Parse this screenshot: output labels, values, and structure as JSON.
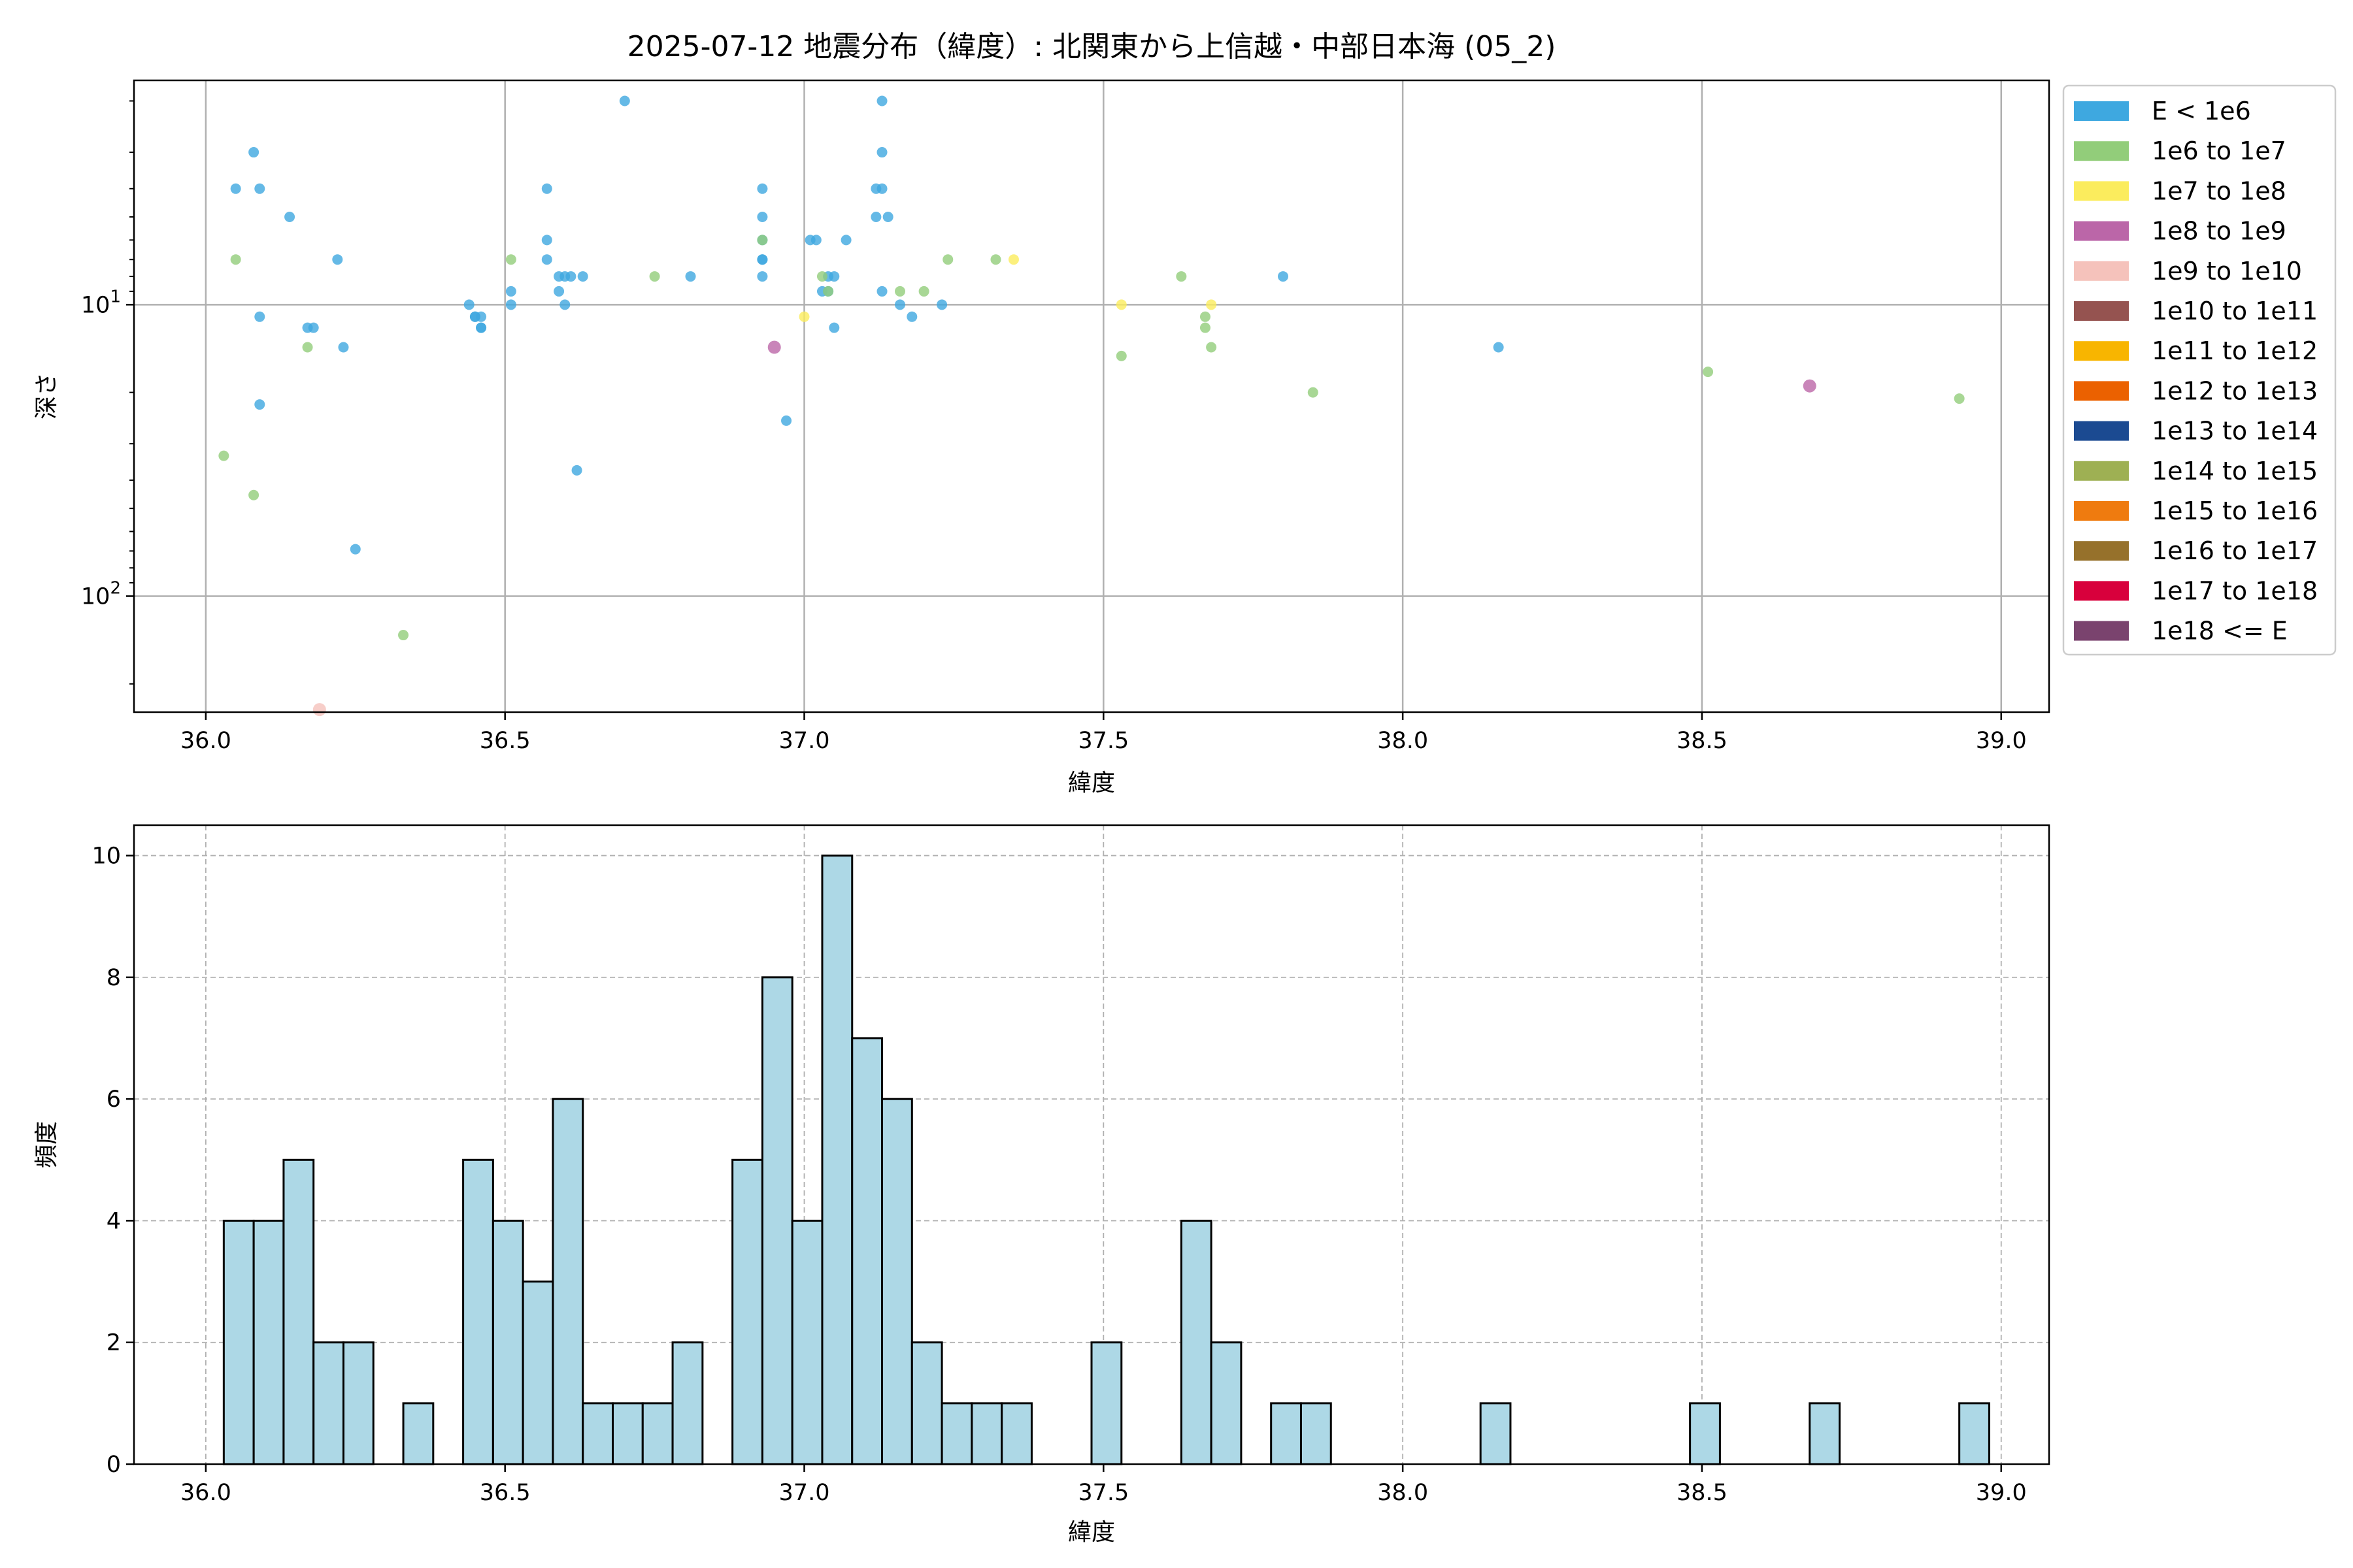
{
  "chart_data": [
    {
      "type": "scatter",
      "title": "2025-07-12 地震分布（緯度）: 北関東から上信越・中部日本海 (05_2)",
      "xlabel": "緯度",
      "ylabel": "深さ",
      "xlim": [
        35.88,
        39.08
      ],
      "ylim": [
        250,
        1.7
      ],
      "yscale": "log",
      "y_inverted": true,
      "grid": true,
      "x_ticks": [
        "36.0",
        "36.5",
        "37.0",
        "37.5",
        "38.0",
        "38.5",
        "39.0"
      ],
      "y_ticks": [
        10,
        100
      ],
      "legend_position": "outside-right",
      "legend": [
        {
          "label": "E < 1e6",
          "color": "#3ea8e0"
        },
        {
          "label": "1e6 to 1e7",
          "color": "#92cd7a"
        },
        {
          "label": "1e7 to 1e8",
          "color": "#fbec5d"
        },
        {
          "label": "1e8 to 1e9",
          "color": "#bb66a8"
        },
        {
          "label": "1e9 to 1e10",
          "color": "#f5c2bb"
        },
        {
          "label": "1e10 to 1e11",
          "color": "#955350"
        },
        {
          "label": "1e11 to 1e12",
          "color": "#f8b500"
        },
        {
          "label": "1e12 to 1e13",
          "color": "#eb6100"
        },
        {
          "label": "1e13 to 1e14",
          "color": "#1b4a91"
        },
        {
          "label": "1e14 to 1e15",
          "color": "#9eb053"
        },
        {
          "label": "1e15 to 1e16",
          "color": "#ef7b0f"
        },
        {
          "label": "1e16 to 1e17",
          "color": "#96712b"
        },
        {
          "label": "1e17 to 1e18",
          "color": "#d8003c"
        },
        {
          "label": "1e18 <= E",
          "color": "#7a436e"
        }
      ],
      "series": [
        {
          "color": "#3ea8e0",
          "points": [
            [
              36.05,
              4.0
            ],
            [
              36.08,
              3.0
            ],
            [
              36.09,
              4.0
            ],
            [
              36.09,
              11.0
            ],
            [
              36.09,
              22.0
            ],
            [
              36.14,
              5.0
            ],
            [
              36.17,
              12.0
            ],
            [
              36.18,
              12.0
            ],
            [
              36.22,
              7.0
            ],
            [
              36.23,
              14.0
            ],
            [
              36.25,
              69.0
            ],
            [
              36.44,
              10.0
            ],
            [
              36.45,
              11.0
            ],
            [
              36.45,
              11.0
            ],
            [
              36.46,
              11.0
            ],
            [
              36.46,
              12.0
            ],
            [
              36.46,
              12.0
            ],
            [
              36.51,
              9.0
            ],
            [
              36.51,
              10.0
            ],
            [
              36.57,
              4.0
            ],
            [
              36.57,
              6.0
            ],
            [
              36.57,
              7.0
            ],
            [
              36.59,
              8.0
            ],
            [
              36.59,
              9.0
            ],
            [
              36.6,
              8.0
            ],
            [
              36.6,
              10.0
            ],
            [
              36.61,
              8.0
            ],
            [
              36.62,
              37.0
            ],
            [
              36.63,
              8.0
            ],
            [
              36.7,
              2.0
            ],
            [
              36.81,
              8.0
            ],
            [
              36.93,
              4.0
            ],
            [
              36.93,
              5.0
            ],
            [
              36.93,
              6.0
            ],
            [
              36.93,
              7.0
            ],
            [
              36.93,
              7.0
            ],
            [
              36.93,
              8.0
            ],
            [
              36.97,
              25.0
            ],
            [
              37.01,
              6.0
            ],
            [
              37.02,
              6.0
            ],
            [
              37.03,
              9.0
            ],
            [
              37.04,
              8.0
            ],
            [
              37.04,
              9.0
            ],
            [
              37.05,
              12.0
            ],
            [
              37.05,
              8.0
            ],
            [
              37.07,
              6.0
            ],
            [
              37.12,
              4.0
            ],
            [
              37.12,
              5.0
            ],
            [
              37.13,
              2.0
            ],
            [
              37.13,
              3.0
            ],
            [
              37.13,
              4.0
            ],
            [
              37.13,
              9.0
            ],
            [
              37.14,
              5.0
            ],
            [
              37.16,
              10.0
            ],
            [
              37.18,
              11.0
            ],
            [
              37.23,
              10.0
            ],
            [
              37.8,
              8.0
            ],
            [
              38.16,
              14.0
            ]
          ]
        },
        {
          "color": "#92cd7a",
          "points": [
            [
              36.03,
              33.0
            ],
            [
              36.05,
              7.0
            ],
            [
              36.08,
              45.0
            ],
            [
              36.17,
              14.0
            ],
            [
              36.33,
              136.0
            ],
            [
              36.51,
              7.0
            ],
            [
              36.75,
              8.0
            ],
            [
              36.93,
              6.0
            ],
            [
              37.03,
              8.0
            ],
            [
              37.04,
              9.0
            ],
            [
              37.16,
              9.0
            ],
            [
              37.2,
              9.0
            ],
            [
              37.24,
              7.0
            ],
            [
              37.32,
              7.0
            ],
            [
              37.53,
              15.0
            ],
            [
              37.63,
              8.0
            ],
            [
              37.67,
              12.0
            ],
            [
              37.67,
              11.0
            ],
            [
              37.68,
              14.0
            ],
            [
              37.85,
              20.0
            ],
            [
              38.51,
              17.0
            ],
            [
              38.93,
              21.0
            ]
          ]
        },
        {
          "color": "#fbec5d",
          "points": [
            [
              37.0,
              11.0
            ],
            [
              37.35,
              7.0
            ],
            [
              37.53,
              10.0
            ],
            [
              37.68,
              10.0
            ]
          ]
        },
        {
          "color": "#bb66a8",
          "points": [
            [
              36.95,
              14.0
            ],
            [
              38.68,
              19.0
            ]
          ]
        },
        {
          "color": "#f5c2bb",
          "points": [
            [
              36.19,
              245.0
            ]
          ]
        }
      ]
    },
    {
      "type": "bar",
      "title": "",
      "xlabel": "緯度",
      "ylabel": "頻度",
      "xlim": [
        35.88,
        39.08
      ],
      "ylim": [
        0,
        10.5
      ],
      "grid": true,
      "bar_color": "#add8e6",
      "bar_edge_color": "#000000",
      "bin_width": 0.05,
      "x_ticks": [
        "36.0",
        "36.5",
        "37.0",
        "37.5",
        "38.0",
        "38.5",
        "39.0"
      ],
      "y_ticks": [
        0,
        2,
        4,
        6,
        8,
        10
      ],
      "bins": [
        {
          "x": 36.03,
          "value": 4
        },
        {
          "x": 36.08,
          "value": 4
        },
        {
          "x": 36.13,
          "value": 5
        },
        {
          "x": 36.18,
          "value": 2
        },
        {
          "x": 36.23,
          "value": 2
        },
        {
          "x": 36.33,
          "value": 1
        },
        {
          "x": 36.43,
          "value": 5
        },
        {
          "x": 36.48,
          "value": 4
        },
        {
          "x": 36.53,
          "value": 3
        },
        {
          "x": 36.58,
          "value": 6
        },
        {
          "x": 36.63,
          "value": 1
        },
        {
          "x": 36.68,
          "value": 1
        },
        {
          "x": 36.73,
          "value": 1
        },
        {
          "x": 36.78,
          "value": 2
        },
        {
          "x": 36.88,
          "value": 5
        },
        {
          "x": 36.93,
          "value": 8
        },
        {
          "x": 36.98,
          "value": 4
        },
        {
          "x": 37.03,
          "value": 10
        },
        {
          "x": 37.08,
          "value": 7
        },
        {
          "x": 37.13,
          "value": 6
        },
        {
          "x": 37.18,
          "value": 2
        },
        {
          "x": 37.23,
          "value": 1
        },
        {
          "x": 37.28,
          "value": 1
        },
        {
          "x": 37.33,
          "value": 1
        },
        {
          "x": 37.48,
          "value": 2
        },
        {
          "x": 37.63,
          "value": 4
        },
        {
          "x": 37.68,
          "value": 2
        },
        {
          "x": 37.78,
          "value": 1
        },
        {
          "x": 37.83,
          "value": 1
        },
        {
          "x": 38.13,
          "value": 1
        },
        {
          "x": 38.48,
          "value": 1
        },
        {
          "x": 38.68,
          "value": 1
        },
        {
          "x": 38.93,
          "value": 1
        }
      ]
    }
  ]
}
